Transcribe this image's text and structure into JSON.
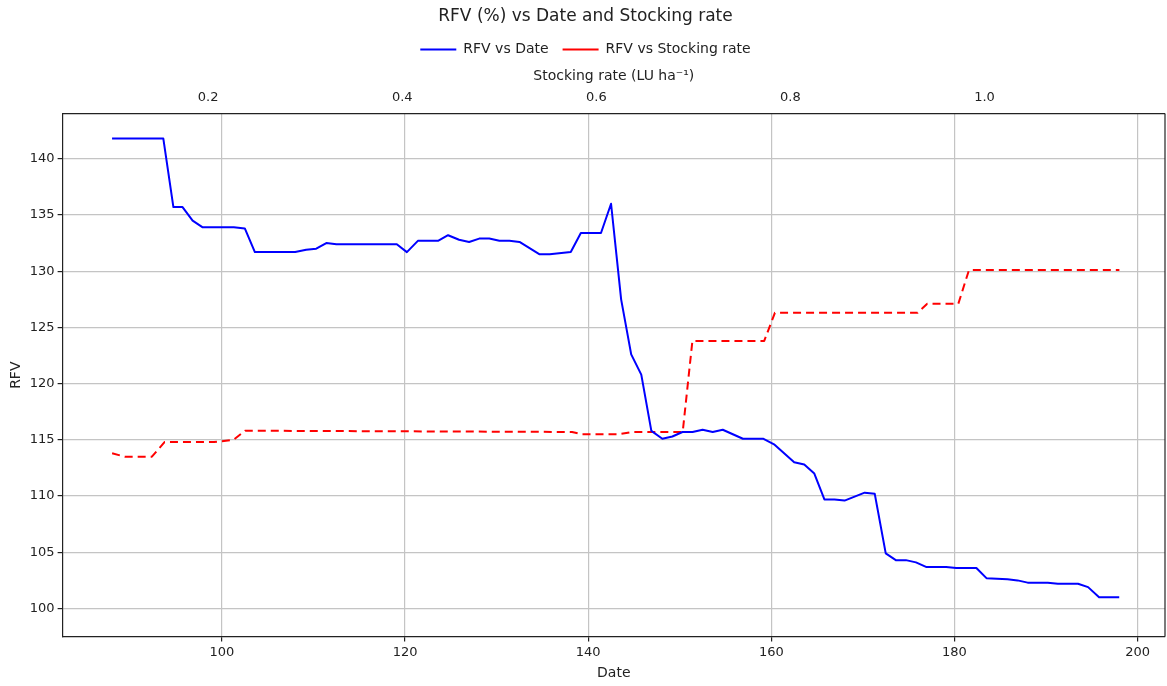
{
  "chart_data": {
    "type": "line",
    "title": "RFV (%) vs Date and Stocking rate",
    "xlabel": "Date",
    "ylabel": "RFV",
    "x2label": "Stocking rate (LU ha⁻¹)",
    "xlim": [
      82.6,
      203
    ],
    "xticks": [
      100,
      120,
      140,
      160,
      180,
      200
    ],
    "x2lim": [
      0.05,
      1.186
    ],
    "x2ticks": [
      0.2,
      0.4,
      0.6,
      0.8,
      {
        "value": 1.0,
        "label": "1.0"
      }
    ],
    "ylim": [
      97.5,
      144
    ],
    "yticks": [
      100,
      105,
      110,
      115,
      120,
      125,
      130,
      135,
      140
    ],
    "grid": true,
    "legend": "top",
    "series": [
      {
        "name": "RFV vs Date",
        "color": "#0000ff",
        "line_style": "solid",
        "x": [
          88.0,
          93.6,
          94.7,
          95.7,
          96.8,
          97.9,
          101.3,
          102.5,
          103.6,
          108.0,
          109.2,
          110.3,
          111.4,
          112.5,
          119.1,
          120.2,
          121.4,
          123.6,
          124.7,
          125.9,
          127.0,
          128.1,
          129.2,
          130.3,
          131.4,
          132.5,
          134.7,
          135.8,
          138.1,
          139.2,
          141.4,
          142.5,
          143.6,
          144.7,
          145.8,
          146.9,
          148.1,
          149.2,
          150.3,
          151.4,
          152.5,
          153.6,
          154.7,
          156.9,
          159.1,
          160.3,
          162.5,
          163.6,
          164.7,
          165.8,
          166.9,
          168.0,
          170.2,
          171.3,
          172.5,
          173.6,
          174.7,
          175.8,
          176.9,
          178.0,
          179.1,
          180.2,
          182.4,
          183.5,
          185.8,
          186.9,
          188.0,
          190.2,
          191.3,
          193.5,
          194.6,
          195.8,
          198.0
        ],
        "values": [
          141.8,
          141.8,
          135.7,
          135.7,
          134.5,
          133.9,
          133.9,
          133.8,
          131.7,
          131.7,
          131.9,
          132.0,
          132.5,
          132.4,
          132.4,
          131.7,
          132.7,
          132.7,
          133.2,
          132.8,
          132.6,
          132.9,
          132.9,
          132.7,
          132.7,
          132.6,
          131.5,
          131.5,
          131.7,
          133.4,
          133.4,
          136.0,
          127.5,
          122.6,
          120.8,
          115.8,
          115.1,
          115.3,
          115.7,
          115.7,
          115.9,
          115.7,
          115.9,
          115.1,
          115.1,
          114.6,
          113.0,
          112.8,
          112.0,
          109.7,
          109.7,
          109.6,
          110.3,
          110.2,
          104.9,
          104.3,
          104.3,
          104.1,
          103.7,
          103.7,
          103.7,
          103.6,
          103.6,
          102.7,
          102.6,
          102.5,
          102.3,
          102.3,
          102.2,
          102.2,
          101.9,
          101.0,
          101.0
        ]
      },
      {
        "name": "RFV vs Stocking rate",
        "color": "#ff0000",
        "line_style": "dashed",
        "axis": "x2",
        "x": [
          0.101,
          0.114,
          0.142,
          0.155,
          0.206,
          0.226,
          0.238,
          0.274,
          0.575,
          0.585,
          0.623,
          0.637,
          0.689,
          0.699,
          0.773,
          0.784,
          0.931,
          0.941,
          0.973,
          0.984,
          1.139
        ],
        "values": [
          113.8,
          113.5,
          113.5,
          114.8,
          114.8,
          115.0,
          115.8,
          115.8,
          115.7,
          115.5,
          115.5,
          115.7,
          115.7,
          123.8,
          123.8,
          126.3,
          126.3,
          127.1,
          127.1,
          130.1,
          130.1
        ]
      }
    ]
  }
}
